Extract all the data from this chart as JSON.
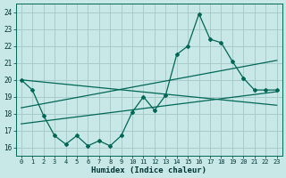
{
  "xlabel": "Humidex (Indice chaleur)",
  "bg_color": "#c8e8e8",
  "grid_color": "#a8cccc",
  "line_color": "#006655",
  "xlim": [
    -0.5,
    23.5
  ],
  "ylim": [
    15.5,
    24.5
  ],
  "xticks": [
    0,
    1,
    2,
    3,
    4,
    5,
    6,
    7,
    8,
    9,
    10,
    11,
    12,
    13,
    14,
    15,
    16,
    17,
    18,
    19,
    20,
    21,
    22,
    23
  ],
  "yticks": [
    16,
    17,
    18,
    19,
    20,
    21,
    22,
    23,
    24
  ],
  "main_x": [
    0,
    1,
    2,
    3,
    4,
    5,
    6,
    7,
    8,
    9,
    10,
    11,
    12,
    13,
    14,
    15,
    16,
    17,
    18,
    19,
    20,
    21,
    22,
    23
  ],
  "main_y": [
    20.0,
    19.4,
    17.9,
    16.7,
    16.2,
    16.7,
    16.1,
    16.4,
    16.1,
    16.7,
    18.1,
    19.0,
    18.2,
    19.1,
    21.5,
    22.0,
    23.9,
    22.4,
    22.2,
    21.1,
    20.1,
    19.4,
    19.4,
    19.4
  ],
  "reg_lines": [
    {
      "x": [
        0,
        23
      ],
      "y": [
        20.0,
        18.5
      ]
    },
    {
      "x": [
        0,
        23
      ],
      "y": [
        18.35,
        21.15
      ]
    },
    {
      "x": [
        0,
        23
      ],
      "y": [
        17.4,
        19.3
      ]
    }
  ]
}
